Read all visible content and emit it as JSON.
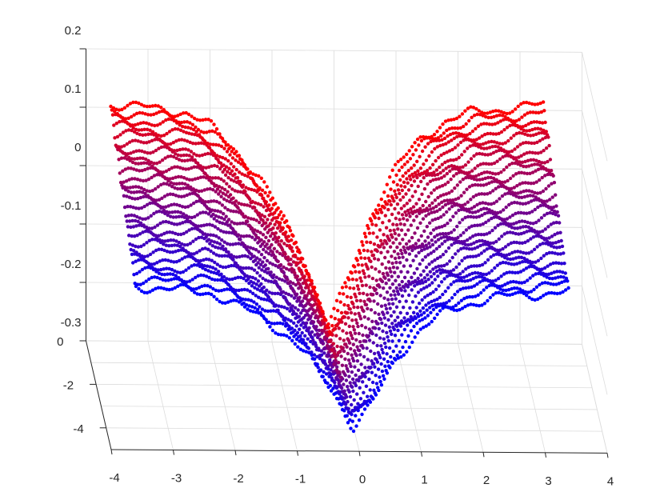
{
  "chart_data": {
    "type": "scatter",
    "dimensions": 3,
    "title": "",
    "xlabel": "",
    "ylabel": "",
    "zlabel": "",
    "grid": true,
    "colormap": [
      "#0000ff",
      "#ff0000"
    ],
    "x_ticks": [
      "-4",
      "-3",
      "-2",
      "-1",
      "0",
      "1",
      "2",
      "3",
      "4"
    ],
    "y_ticks": [
      "0",
      "-2",
      "-4"
    ],
    "z_ticks": [
      "0.2",
      "0.1",
      "0",
      "-0.1",
      "-0.2",
      "-0.3"
    ],
    "xlim": [
      -4,
      4
    ],
    "ylim": [
      -5,
      0
    ],
    "zlim": [
      -0.3,
      0.2
    ],
    "series": [
      {
        "x": [
          -3.6,
          -3.0,
          -2.4,
          -2.0,
          -1.6,
          -1.2,
          -0.8,
          -0.4,
          -0.1,
          0.2,
          0.6,
          1.0,
          1.4,
          1.8,
          2.2,
          2.6,
          3.0,
          3.4
        ],
        "y": [
          0,
          0,
          0,
          0,
          0,
          0,
          0,
          0,
          0,
          0,
          0,
          0,
          0,
          0,
          0,
          0,
          0,
          0
        ],
        "z": [
          0.105,
          0.1,
          0.092,
          0.07,
          0.03,
          -0.02,
          -0.09,
          -0.18,
          -0.27,
          -0.2,
          -0.08,
          0.0,
          0.05,
          0.08,
          0.095,
          0.1,
          0.105,
          0.11
        ]
      },
      {
        "x": [
          -3.6,
          -3.0,
          -2.4,
          -2.0,
          -1.6,
          -1.2,
          -0.8,
          -0.4,
          -0.1,
          0.2,
          0.6,
          1.0,
          1.4,
          1.8,
          2.2,
          2.6,
          3.0,
          3.4
        ],
        "y": [
          -5,
          -5,
          -5,
          -5,
          -5,
          -5,
          -5,
          -5,
          -5,
          -5,
          -5,
          -5,
          -5,
          -5,
          -5,
          -5,
          -5,
          -5
        ],
        "z": [
          -0.02,
          -0.025,
          -0.03,
          -0.05,
          -0.07,
          -0.1,
          -0.14,
          -0.2,
          -0.26,
          -0.22,
          -0.14,
          -0.09,
          -0.06,
          -0.045,
          -0.035,
          -0.03,
          -0.028,
          -0.025
        ]
      }
    ]
  }
}
